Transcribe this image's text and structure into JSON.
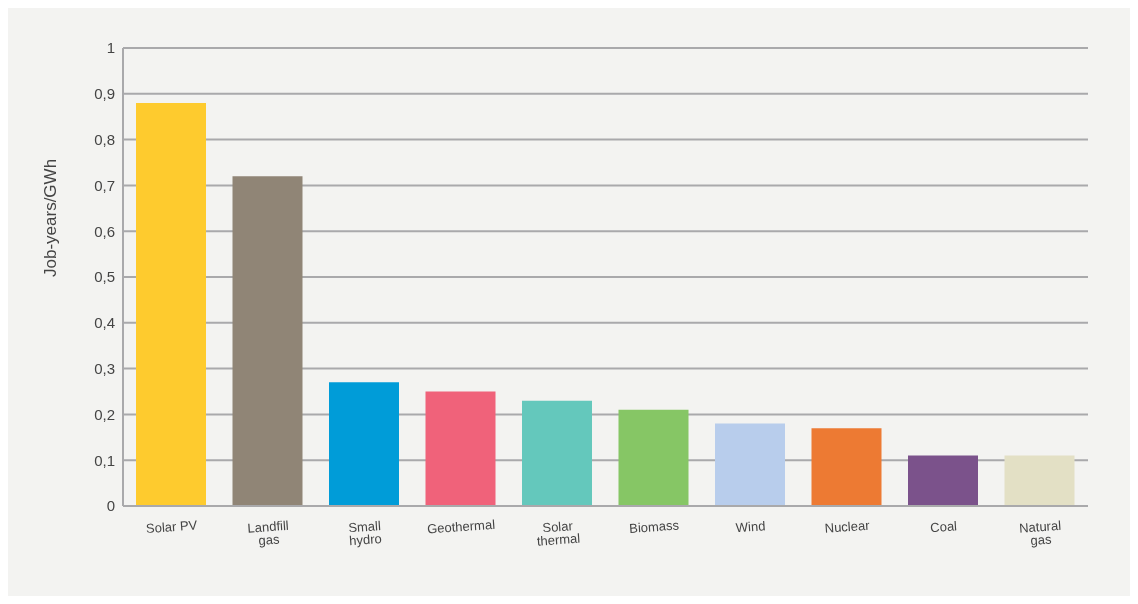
{
  "chart_data": {
    "type": "bar",
    "ylabel": "Job-years/GWh",
    "categories": [
      "Solar PV",
      "Landfill gas",
      "Small hydro",
      "Geothermal",
      "Solar thermal",
      "Biomass",
      "Wind",
      "Nuclear",
      "Coal",
      "Natural gas"
    ],
    "values": [
      0.88,
      0.72,
      0.27,
      0.25,
      0.23,
      0.21,
      0.18,
      0.17,
      0.11,
      0.11
    ],
    "colors": [
      "#fecb2e",
      "#908576",
      "#009cd8",
      "#f0627a",
      "#64c8bc",
      "#86c665",
      "#b8cdec",
      "#ed7a33",
      "#7b528b",
      "#e3e0c5"
    ],
    "ylim": [
      0,
      1
    ],
    "yticks": [
      0,
      {
        "value": 0.1,
        "label": "0,1"
      },
      {
        "value": 0.2,
        "label": "0,2"
      },
      {
        "value": 0.3,
        "label": "0,3"
      },
      {
        "value": 0.4,
        "label": "0,4"
      },
      {
        "value": 0.5,
        "label": "0,5"
      },
      {
        "value": 0.6,
        "label": "0,6"
      },
      {
        "value": 0.7,
        "label": "0,7"
      },
      {
        "value": 0.8,
        "label": "0,8"
      },
      {
        "value": 0.9,
        "label": "0,9"
      },
      1
    ],
    "grid": "y",
    "legend": false
  }
}
